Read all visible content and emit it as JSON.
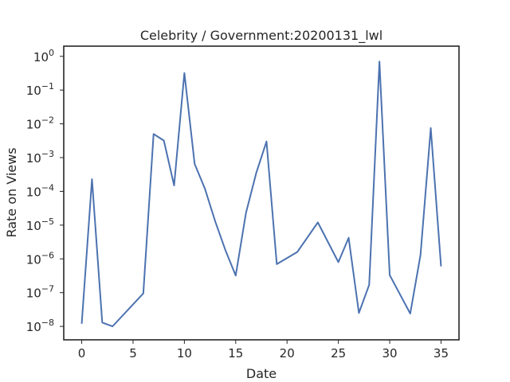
{
  "chart_data": {
    "type": "line",
    "title": "Celebrity / Government:20200131_lwl",
    "xlabel": "Date",
    "ylabel": "Rate on Views",
    "yscale": "log",
    "xlim": [
      -1.75,
      36.75
    ],
    "ylim": [
      4e-09,
      2.0
    ],
    "grid": false,
    "line_color": "#4c72b0",
    "x_ticks": [
      0,
      5,
      10,
      15,
      20,
      25,
      30,
      35
    ],
    "y_ticks": [
      {
        "value": 1e-08,
        "base": "10",
        "exp": "−8"
      },
      {
        "value": 1e-07,
        "base": "10",
        "exp": "−7"
      },
      {
        "value": 1e-06,
        "base": "10",
        "exp": "−6"
      },
      {
        "value": 1e-05,
        "base": "10",
        "exp": "−5"
      },
      {
        "value": 0.0001,
        "base": "10",
        "exp": "−4"
      },
      {
        "value": 0.001,
        "base": "10",
        "exp": "−3"
      },
      {
        "value": 0.01,
        "base": "10",
        "exp": "−2"
      },
      {
        "value": 0.1,
        "base": "10",
        "exp": "−1"
      },
      {
        "value": 1,
        "base": "10",
        "exp": "0"
      }
    ],
    "series": [
      {
        "x": [
          0,
          1,
          2,
          3,
          6,
          7,
          8,
          9,
          10,
          11,
          12,
          13,
          14,
          15,
          16,
          17,
          18,
          19,
          21,
          23,
          25,
          26,
          27,
          28,
          29,
          30,
          32,
          33,
          34,
          35
        ],
        "y": [
          1.2e-08,
          0.00023,
          1.3e-08,
          1e-08,
          9.5e-08,
          0.005,
          0.0032,
          0.00015,
          0.32,
          0.00065,
          0.00012,
          1.3e-05,
          1.8e-06,
          3.2e-07,
          2.3e-05,
          0.00035,
          0.003,
          7e-07,
          1.6e-06,
          1.2e-05,
          8e-07,
          4.2e-06,
          2.5e-08,
          1.7e-07,
          0.7,
          3.3e-07,
          2.4e-08,
          1.3e-06,
          0.0075,
          6e-07
        ]
      }
    ]
  }
}
